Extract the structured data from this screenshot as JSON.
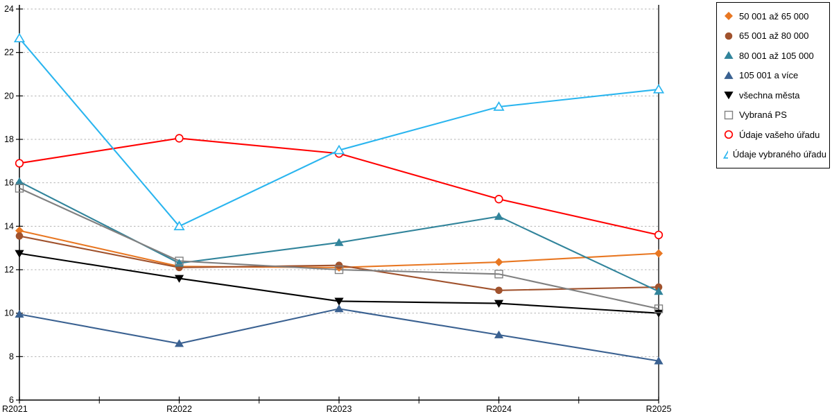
{
  "chart_data": {
    "type": "line",
    "title": "",
    "xlabel": "",
    "ylabel": "",
    "categories": [
      "R2021",
      "R2022",
      "R2023",
      "R2024",
      "R2025"
    ],
    "ylim": [
      6,
      24
    ],
    "ytick_step": 2,
    "yticks": [
      6,
      8,
      10,
      12,
      14,
      16,
      18,
      20,
      22,
      24
    ],
    "grid": "horizontal-dashed",
    "grid_color": "#b3b3b3",
    "axis_color": "#000000",
    "legend_position": "top-right-outside",
    "series": [
      {
        "name": "50 001 až 65 000",
        "color": "#E87722",
        "marker": "diamond",
        "fill": "solid",
        "values": [
          13.8,
          12.15,
          12.1,
          12.35,
          12.75
        ]
      },
      {
        "name": "65 001 až 80 000",
        "color": "#A0522D",
        "marker": "circle",
        "fill": "solid",
        "values": [
          13.55,
          12.1,
          12.2,
          11.05,
          11.2
        ]
      },
      {
        "name": "80 001 až 105 000",
        "color": "#31849B",
        "marker": "triangle-up",
        "fill": "solid",
        "values": [
          16.05,
          12.3,
          13.25,
          14.45,
          11.0
        ]
      },
      {
        "name": "105 001 a více",
        "color": "#3A6191",
        "marker": "triangle-up",
        "fill": "solid",
        "values": [
          9.95,
          8.6,
          10.2,
          9.0,
          7.8
        ]
      },
      {
        "name": "všechna města",
        "color": "#000000",
        "marker": "triangle-down",
        "fill": "solid",
        "values": [
          12.75,
          11.6,
          10.55,
          10.45,
          10.0
        ]
      },
      {
        "name": "Vybraná PS",
        "color": "#808080",
        "marker": "square",
        "fill": "open",
        "values": [
          15.75,
          12.4,
          12.0,
          11.8,
          10.2
        ]
      },
      {
        "name": "Údaje vašeho úřadu",
        "color": "#FF0000",
        "marker": "circle",
        "fill": "open",
        "values": [
          16.9,
          18.05,
          17.35,
          15.25,
          13.6
        ]
      },
      {
        "name": "Údaje vybraného úřadu",
        "color": "#2AB5EF",
        "marker": "triangle-up",
        "fill": "open",
        "values": [
          22.65,
          14.0,
          17.5,
          19.5,
          20.3
        ]
      }
    ]
  }
}
